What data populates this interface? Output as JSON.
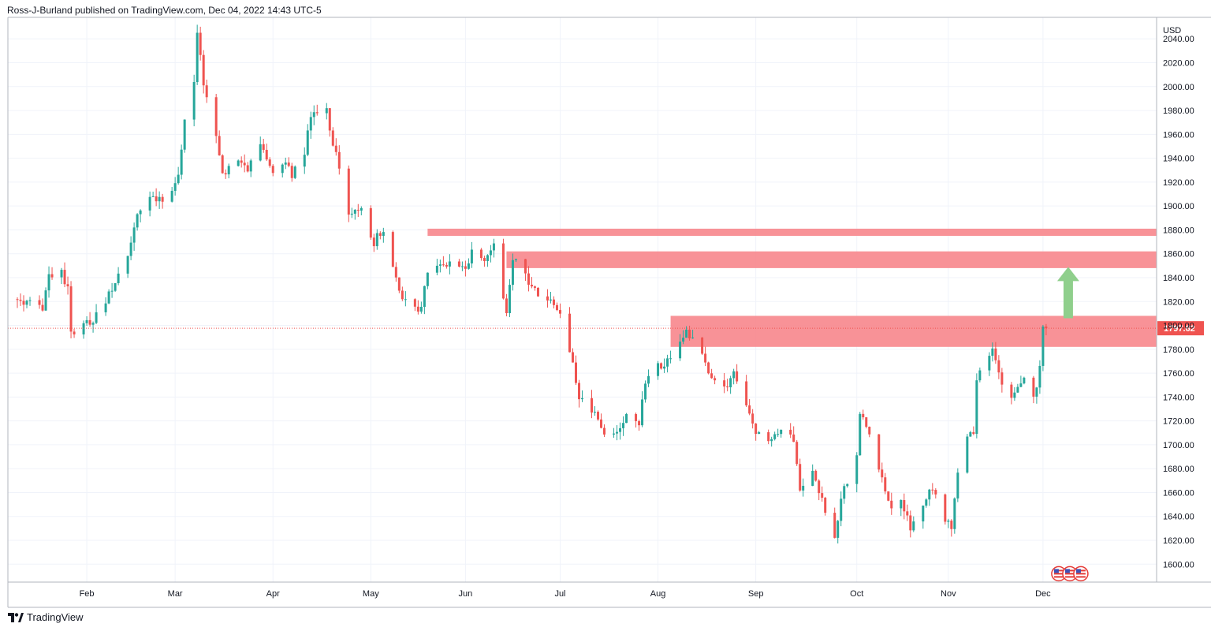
{
  "header": {
    "publisher_text": "Ross-J-Burland published on TradingView.com, Dec 04, 2022 14:43 UTC-5"
  },
  "footer": {
    "brand_text": "TradingView"
  },
  "colors": {
    "up": "#26a69a",
    "down": "#ef5350",
    "zone": "#f7868c",
    "arrow": "#8fcf8c",
    "grid": "#f0f3fa",
    "axis": "#b2b5be",
    "price_line": "#ef5350",
    "price_label_bg": "#ef5350"
  },
  "chart_data": {
    "type": "candlestick",
    "symbol_currency": "USD",
    "y_axis": {
      "unit_label": "USD",
      "ticks": [
        1600,
        1620,
        1640,
        1660,
        1680,
        1700,
        1720,
        1740,
        1760,
        1780,
        1800,
        1820,
        1840,
        1860,
        1880,
        1900,
        1920,
        1940,
        1960,
        1980,
        2000,
        2020,
        2040
      ],
      "tick_labels": [
        "1600.00",
        "1620.00",
        "1640.00",
        "1660.00",
        "1680.00",
        "1700.00",
        "1720.00",
        "1740.00",
        "1760.00",
        "1780.00",
        "1800.00",
        "1820.00",
        "1840.00",
        "1860.00",
        "1880.00",
        "1900.00",
        "1920.00",
        "1940.00",
        "1960.00",
        "1980.00",
        "2000.00",
        "2020.00",
        "2040.00"
      ],
      "range": [
        1585,
        2058
      ]
    },
    "x_axis": {
      "labels": [
        {
          "text": "Feb",
          "date": "2022-02-01"
        },
        {
          "text": "Mar",
          "date": "2022-03-01"
        },
        {
          "text": "Apr",
          "date": "2022-04-01"
        },
        {
          "text": "May",
          "date": "2022-05-02"
        },
        {
          "text": "Jun",
          "date": "2022-06-01"
        },
        {
          "text": "Jul",
          "date": "2022-07-01"
        },
        {
          "text": "Aug",
          "date": "2022-08-01"
        },
        {
          "text": "Sep",
          "date": "2022-09-01"
        },
        {
          "text": "Oct",
          "date": "2022-10-03"
        },
        {
          "text": "Nov",
          "date": "2022-11-01"
        },
        {
          "text": "Dec",
          "date": "2022-12-01"
        }
      ],
      "range": [
        "2022-01-07",
        "2023-01-06"
      ]
    },
    "last_price": 1797.62,
    "last_price_label": "1797.62",
    "zones": [
      {
        "from_date": "2022-05-20",
        "price_low": 1875,
        "price_high": 1881
      },
      {
        "from_date": "2022-06-14",
        "price_low": 1848,
        "price_high": 1862
      },
      {
        "from_date": "2022-08-05",
        "price_low": 1782,
        "price_high": 1808
      }
    ],
    "arrow": {
      "date": "2022-12-09",
      "from_price": 1806,
      "to_price": 1849,
      "direction": "up"
    },
    "events_marker": {
      "date": "2022-12-06",
      "price": 1592,
      "count": 3
    },
    "anchors": [
      [
        "2022-01-10",
        1822
      ],
      [
        "2022-01-14",
        1818
      ],
      [
        "2022-01-18",
        1815
      ],
      [
        "2022-01-20",
        1840
      ],
      [
        "2022-01-24",
        1845
      ],
      [
        "2022-01-26",
        1830
      ],
      [
        "2022-01-27",
        1795
      ],
      [
        "2022-01-28",
        1790
      ],
      [
        "2022-02-01",
        1802
      ],
      [
        "2022-02-03",
        1805
      ],
      [
        "2022-02-07",
        1822
      ],
      [
        "2022-02-10",
        1835
      ],
      [
        "2022-02-14",
        1860
      ],
      [
        "2022-02-17",
        1895
      ],
      [
        "2022-02-18",
        1900
      ],
      [
        "2022-02-22",
        1905
      ],
      [
        "2022-02-24",
        1905
      ],
      [
        "2022-02-28",
        1910
      ],
      [
        "2022-03-02",
        1925
      ],
      [
        "2022-03-04",
        1970
      ],
      [
        "2022-03-07",
        2000
      ],
      [
        "2022-03-08",
        2045
      ],
      [
        "2022-03-10",
        2000
      ],
      [
        "2022-03-14",
        1960
      ],
      [
        "2022-03-16",
        1925
      ],
      [
        "2022-03-18",
        1935
      ],
      [
        "2022-03-22",
        1940
      ],
      [
        "2022-03-24",
        1930
      ],
      [
        "2022-03-28",
        1955
      ],
      [
        "2022-03-30",
        1935
      ],
      [
        "2022-04-01",
        1925
      ],
      [
        "2022-04-05",
        1935
      ],
      [
        "2022-04-07",
        1925
      ],
      [
        "2022-04-11",
        1945
      ],
      [
        "2022-04-13",
        1975
      ],
      [
        "2022-04-18",
        1980
      ],
      [
        "2022-04-20",
        1950
      ],
      [
        "2022-04-22",
        1935
      ],
      [
        "2022-04-25",
        1895
      ],
      [
        "2022-04-29",
        1895
      ],
      [
        "2022-05-03",
        1870
      ],
      [
        "2022-05-06",
        1882
      ],
      [
        "2022-05-10",
        1840
      ],
      [
        "2022-05-12",
        1825
      ],
      [
        "2022-05-16",
        1815
      ],
      [
        "2022-05-18",
        1815
      ],
      [
        "2022-05-20",
        1846
      ],
      [
        "2022-05-24",
        1855
      ],
      [
        "2022-05-27",
        1852
      ],
      [
        "2022-06-01",
        1845
      ],
      [
        "2022-06-03",
        1860
      ],
      [
        "2022-06-07",
        1852
      ],
      [
        "2022-06-10",
        1872
      ],
      [
        "2022-06-13",
        1822
      ],
      [
        "2022-06-14",
        1810
      ],
      [
        "2022-06-16",
        1855
      ],
      [
        "2022-06-21",
        1838
      ],
      [
        "2022-06-24",
        1828
      ],
      [
        "2022-06-29",
        1818
      ],
      [
        "2022-07-01",
        1808
      ],
      [
        "2022-07-05",
        1765
      ],
      [
        "2022-07-07",
        1740
      ],
      [
        "2022-07-12",
        1725
      ],
      [
        "2022-07-15",
        1708
      ],
      [
        "2022-07-19",
        1712
      ],
      [
        "2022-07-21",
        1722
      ],
      [
        "2022-07-22",
        1725
      ],
      [
        "2022-07-26",
        1718
      ],
      [
        "2022-07-28",
        1755
      ],
      [
        "2022-08-01",
        1770
      ],
      [
        "2022-08-03",
        1765
      ],
      [
        "2022-08-05",
        1775
      ],
      [
        "2022-08-08",
        1790
      ],
      [
        "2022-08-10",
        1795
      ],
      [
        "2022-08-15",
        1778
      ],
      [
        "2022-08-17",
        1762
      ],
      [
        "2022-08-19",
        1750
      ],
      [
        "2022-08-23",
        1748
      ],
      [
        "2022-08-25",
        1758
      ],
      [
        "2022-08-30",
        1725
      ],
      [
        "2022-09-01",
        1710
      ],
      [
        "2022-09-06",
        1702
      ],
      [
        "2022-09-09",
        1715
      ],
      [
        "2022-09-13",
        1702
      ],
      [
        "2022-09-15",
        1665
      ],
      [
        "2022-09-19",
        1678
      ],
      [
        "2022-09-23",
        1645
      ],
      [
        "2022-09-26",
        1622
      ],
      [
        "2022-09-28",
        1655
      ],
      [
        "2022-10-03",
        1695
      ],
      [
        "2022-10-04",
        1725
      ],
      [
        "2022-10-07",
        1708
      ],
      [
        "2022-10-11",
        1670
      ],
      [
        "2022-10-14",
        1645
      ],
      [
        "2022-10-17",
        1655
      ],
      [
        "2022-10-20",
        1630
      ],
      [
        "2022-10-24",
        1648
      ],
      [
        "2022-10-27",
        1665
      ],
      [
        "2022-10-31",
        1635
      ],
      [
        "2022-11-02",
        1630
      ],
      [
        "2022-11-04",
        1680
      ],
      [
        "2022-11-07",
        1710
      ],
      [
        "2022-11-09",
        1712
      ],
      [
        "2022-11-10",
        1755
      ],
      [
        "2022-11-15",
        1778
      ],
      [
        "2022-11-18",
        1752
      ],
      [
        "2022-11-21",
        1738
      ],
      [
        "2022-11-23",
        1745
      ],
      [
        "2022-11-25",
        1755
      ],
      [
        "2022-11-28",
        1740
      ],
      [
        "2022-11-29",
        1748
      ],
      [
        "2022-11-30",
        1768
      ],
      [
        "2022-12-01",
        1802
      ],
      [
        "2022-12-02",
        1797.62
      ]
    ]
  }
}
